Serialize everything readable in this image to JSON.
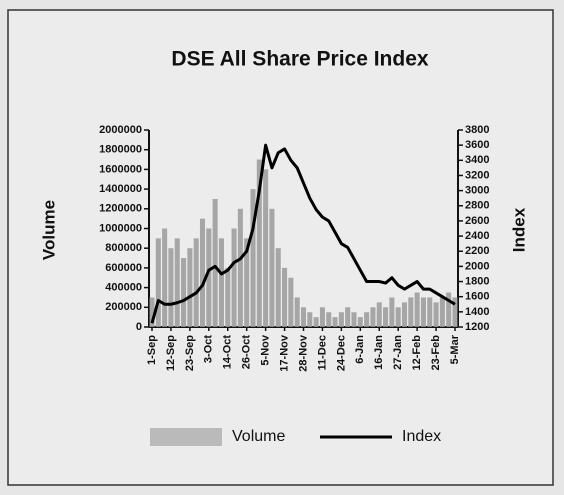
{
  "chart_data": {
    "type": "bar",
    "title": "DSE All Share Price Index",
    "y_label": "Volume",
    "y2_label": "Index",
    "categories": [
      "1-Sep",
      null,
      null,
      "12-Sep",
      null,
      null,
      "23-Sep",
      null,
      null,
      "3-Oct",
      null,
      null,
      "14-Oct",
      null,
      null,
      "26-Oct",
      null,
      null,
      "5-Nov",
      null,
      null,
      "17-Nov",
      null,
      null,
      "28-Nov",
      null,
      null,
      "11-Dec",
      null,
      null,
      "24-Dec",
      null,
      null,
      "6-Jan",
      null,
      null,
      "16-Jan",
      null,
      null,
      "27-Jan",
      null,
      null,
      "12-Feb",
      null,
      null,
      "23-Feb",
      null,
      null,
      "5-Mar"
    ],
    "series": [
      {
        "name": "Volume",
        "type": "bar",
        "color": "#9a9a9a",
        "values": [
          300000,
          900000,
          1000000,
          800000,
          900000,
          700000,
          800000,
          900000,
          1100000,
          1000000,
          1300000,
          900000,
          600000,
          1000000,
          1200000,
          900000,
          1400000,
          1700000,
          1600000,
          1200000,
          800000,
          600000,
          500000,
          300000,
          200000,
          150000,
          100000,
          200000,
          150000,
          100000,
          150000,
          200000,
          150000,
          100000,
          150000,
          200000,
          250000,
          200000,
          300000,
          200000,
          250000,
          300000,
          350000,
          300000,
          300000,
          250000,
          300000,
          350000,
          300000
        ]
      },
      {
        "name": "Index",
        "type": "line",
        "axis": "y2",
        "color": "#000000",
        "values": [
          1250,
          1550,
          1500,
          1500,
          1520,
          1550,
          1600,
          1650,
          1750,
          1950,
          2000,
          1900,
          1950,
          2050,
          2100,
          2200,
          2500,
          3000,
          3600,
          3300,
          3500,
          3550,
          3400,
          3300,
          3100,
          2900,
          2750,
          2650,
          2600,
          2450,
          2300,
          2250,
          2100,
          1950,
          1800,
          1800,
          1800,
          1780,
          1850,
          1750,
          1700,
          1750,
          1800,
          1700,
          1700,
          1650,
          1600,
          1550,
          1500
        ]
      }
    ],
    "ylim": [
      0,
      2000000
    ],
    "yticks": [
      0,
      200000,
      400000,
      600000,
      800000,
      1000000,
      1200000,
      1400000,
      1600000,
      1800000,
      2000000
    ],
    "y2lim": [
      1200,
      3800
    ],
    "y2ticks": [
      1200,
      1400,
      1600,
      1800,
      2000,
      2200,
      2400,
      2600,
      2800,
      3000,
      3200,
      3400,
      3600,
      3800
    ],
    "legend": "bottom"
  }
}
